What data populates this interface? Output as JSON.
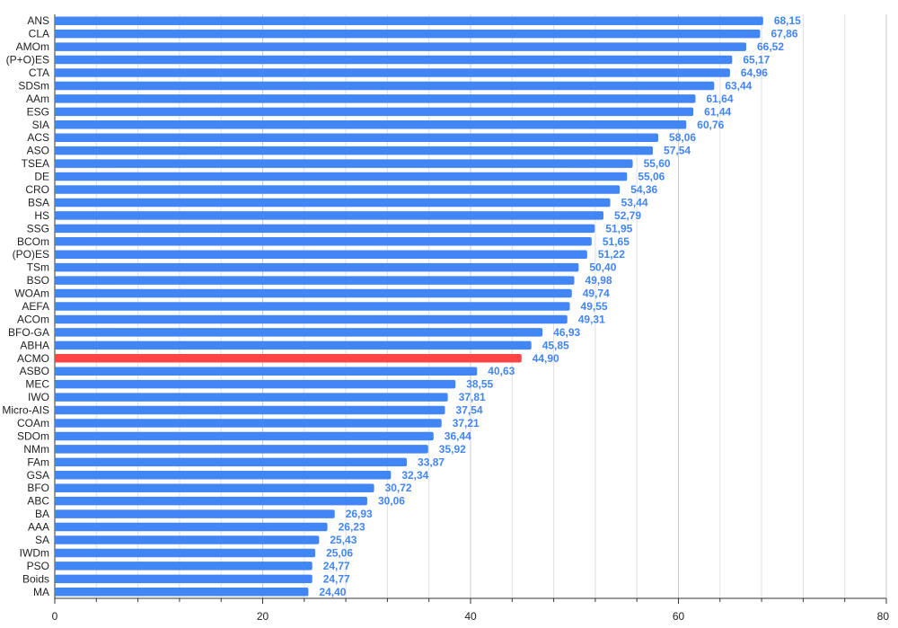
{
  "chart_data": {
    "type": "bar",
    "orientation": "horizontal",
    "title": "",
    "xlabel": "",
    "ylabel": "",
    "xlim": [
      0,
      80
    ],
    "x_ticks": [
      0,
      20,
      40,
      60,
      80
    ],
    "x_tick_labels": [
      "0",
      "20",
      "40",
      "60",
      "80"
    ],
    "grid": true,
    "legend": "none",
    "categories": [
      "ANS",
      "CLA",
      "AMOm",
      "(P+O)ES",
      "CTA",
      "SDSm",
      "AAm",
      "ESG",
      "SIA",
      "ACS",
      "ASO",
      "TSEA",
      "DE",
      "CRO",
      "BSA",
      "HS",
      "SSG",
      "BCOm",
      "(PO)ES",
      "TSm",
      "BSO",
      "WOAm",
      "AEFA",
      "ACOm",
      "BFO-GA",
      "ABHA",
      "ACMO",
      "ASBO",
      "MEC",
      "IWO",
      "Micro-AIS",
      "COAm",
      "SDOm",
      "NMm",
      "FAm",
      "GSA",
      "BFO",
      "ABC",
      "BA",
      "AAA",
      "SA",
      "IWDm",
      "PSO",
      "Boids",
      "MA"
    ],
    "values": [
      68.15,
      67.86,
      66.52,
      65.17,
      64.96,
      63.44,
      61.64,
      61.44,
      60.76,
      58.06,
      57.54,
      55.6,
      55.06,
      54.36,
      53.44,
      52.79,
      51.95,
      51.65,
      51.22,
      50.4,
      49.98,
      49.74,
      49.55,
      49.31,
      46.93,
      45.85,
      44.9,
      40.63,
      38.55,
      37.81,
      37.54,
      37.21,
      36.44,
      35.92,
      33.87,
      32.34,
      30.72,
      30.06,
      26.93,
      26.23,
      25.43,
      25.06,
      24.77,
      24.77,
      24.4
    ],
    "value_labels": [
      "68,15",
      "67,86",
      "66,52",
      "65,17",
      "64,96",
      "63,44",
      "61,64",
      "61,44",
      "60,76",
      "58,06",
      "57,54",
      "55,60",
      "55,06",
      "54,36",
      "53,44",
      "52,79",
      "51,95",
      "51,65",
      "51,22",
      "50,40",
      "49,98",
      "49,74",
      "49,55",
      "49,31",
      "46,93",
      "45,85",
      "44,90",
      "40,63",
      "38,55",
      "37,81",
      "37,54",
      "37,21",
      "36,44",
      "35,92",
      "33,87",
      "32,34",
      "30,72",
      "30,06",
      "26,93",
      "26,23",
      "25,43",
      "25,06",
      "24,77",
      "24,77",
      "24,40"
    ],
    "highlight_category": "ACMO",
    "colors": {
      "bar": "#4285f4",
      "highlight": "#ff4444",
      "value_label": "#4285f4",
      "grid": "#e0e0e0",
      "axis": "#333333",
      "text": "#222222"
    }
  }
}
